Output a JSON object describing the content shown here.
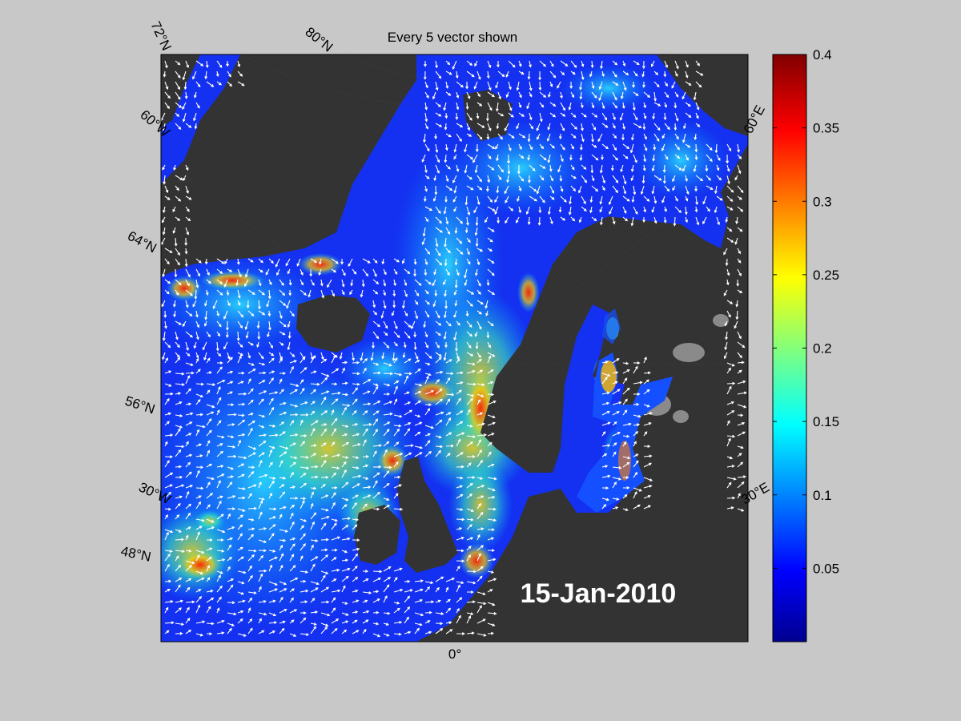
{
  "figure": {
    "title": "Every 5 vector shown",
    "date_label": "15-Jan-2010"
  },
  "map": {
    "meridian_label": "0°",
    "grid_labels": [
      {
        "text": "72°N"
      },
      {
        "text": "80°N"
      },
      {
        "text": "60°W"
      },
      {
        "text": "64°N"
      },
      {
        "text": "56°N"
      },
      {
        "text": "30°W"
      },
      {
        "text": "48°N"
      },
      {
        "text": "60°E"
      },
      {
        "text": "30°E"
      }
    ],
    "colors": {
      "land": "#333333",
      "ice": "#888888",
      "arrows": "#ffffff",
      "background": "#c8c8c8"
    }
  },
  "colorbar": {
    "min": 0,
    "max": 0.4,
    "colormap": "jet",
    "ticks": [
      {
        "value": 0.4,
        "label": "0.4"
      },
      {
        "value": 0.35,
        "label": "0.35"
      },
      {
        "value": 0.3,
        "label": "0.3"
      },
      {
        "value": 0.25,
        "label": "0.25"
      },
      {
        "value": 0.2,
        "label": "0.2"
      },
      {
        "value": 0.15,
        "label": "0.15"
      },
      {
        "value": 0.1,
        "label": "0.1"
      },
      {
        "value": 0.05,
        "label": "0.05"
      }
    ]
  }
}
